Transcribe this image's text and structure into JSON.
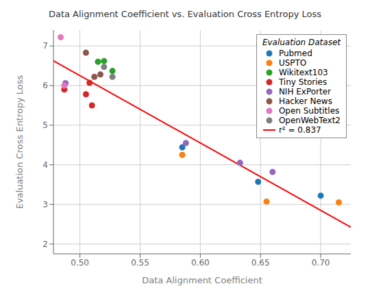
{
  "chart_data": {
    "type": "scatter",
    "title": "Data Alignment Coefficient vs. Evaluation Cross Entropy Loss",
    "xlabel": "Data Alignment Coefficient",
    "ylabel": "Evaluation Cross Entropy Loss",
    "xlim": [
      0.478,
      0.725
    ],
    "ylim": [
      1.75,
      7.4
    ],
    "xticks": [
      {
        "value": 0.5,
        "label": "0.50"
      },
      0.55,
      {
        "value": 0.6,
        "label": "0.60"
      },
      0.65,
      {
        "value": 0.7,
        "label": "0.70"
      }
    ],
    "yticks": [
      2,
      3,
      4,
      5,
      6,
      7
    ],
    "grid": true,
    "legend": "upper right",
    "legend_title": "Evaluation Dataset",
    "series": [
      {
        "name": "Pubmed",
        "color": "#1f77b4",
        "x": [
          0.585,
          0.648,
          0.7
        ],
        "values": [
          4.44,
          3.57,
          3.22
        ]
      },
      {
        "name": "USPTO",
        "color": "#ff7f0e",
        "x": [
          0.585,
          0.655,
          0.715
        ],
        "values": [
          4.25,
          3.07,
          3.05
        ]
      },
      {
        "name": "Wikitext103",
        "color": "#2ca02c",
        "x": [
          0.515,
          0.52,
          0.527
        ],
        "values": [
          6.6,
          6.62,
          6.37
        ]
      },
      {
        "name": "Tiny Stories",
        "color": "#d62728",
        "x": [
          0.487,
          0.505,
          0.51,
          0.508
        ],
        "values": [
          5.9,
          5.78,
          5.5,
          6.07
        ]
      },
      {
        "name": "NIH ExPorter",
        "color": "#9467bd",
        "x": [
          0.488,
          0.588,
          0.633,
          0.66
        ],
        "values": [
          6.06,
          4.55,
          4.05,
          3.82
        ]
      },
      {
        "name": "Hacker News",
        "color": "#8c564b",
        "x": [
          0.505,
          0.512,
          0.517
        ],
        "values": [
          6.83,
          6.22,
          6.28
        ]
      },
      {
        "name": "Open Subtitles",
        "color": "#e377c2",
        "x": [
          0.484,
          0.487
        ],
        "values": [
          7.22,
          6.0
        ]
      },
      {
        "name": "OpenWebText2",
        "color": "#7f7f7f",
        "x": [
          0.52,
          0.527
        ],
        "values": [
          6.47,
          6.22
        ]
      },
      {
        "name": "r² = 0.837",
        "type": "line",
        "color": "red",
        "x": [
          0.478,
          0.725
        ],
        "values": [
          6.624,
          2.425
        ]
      }
    ]
  }
}
